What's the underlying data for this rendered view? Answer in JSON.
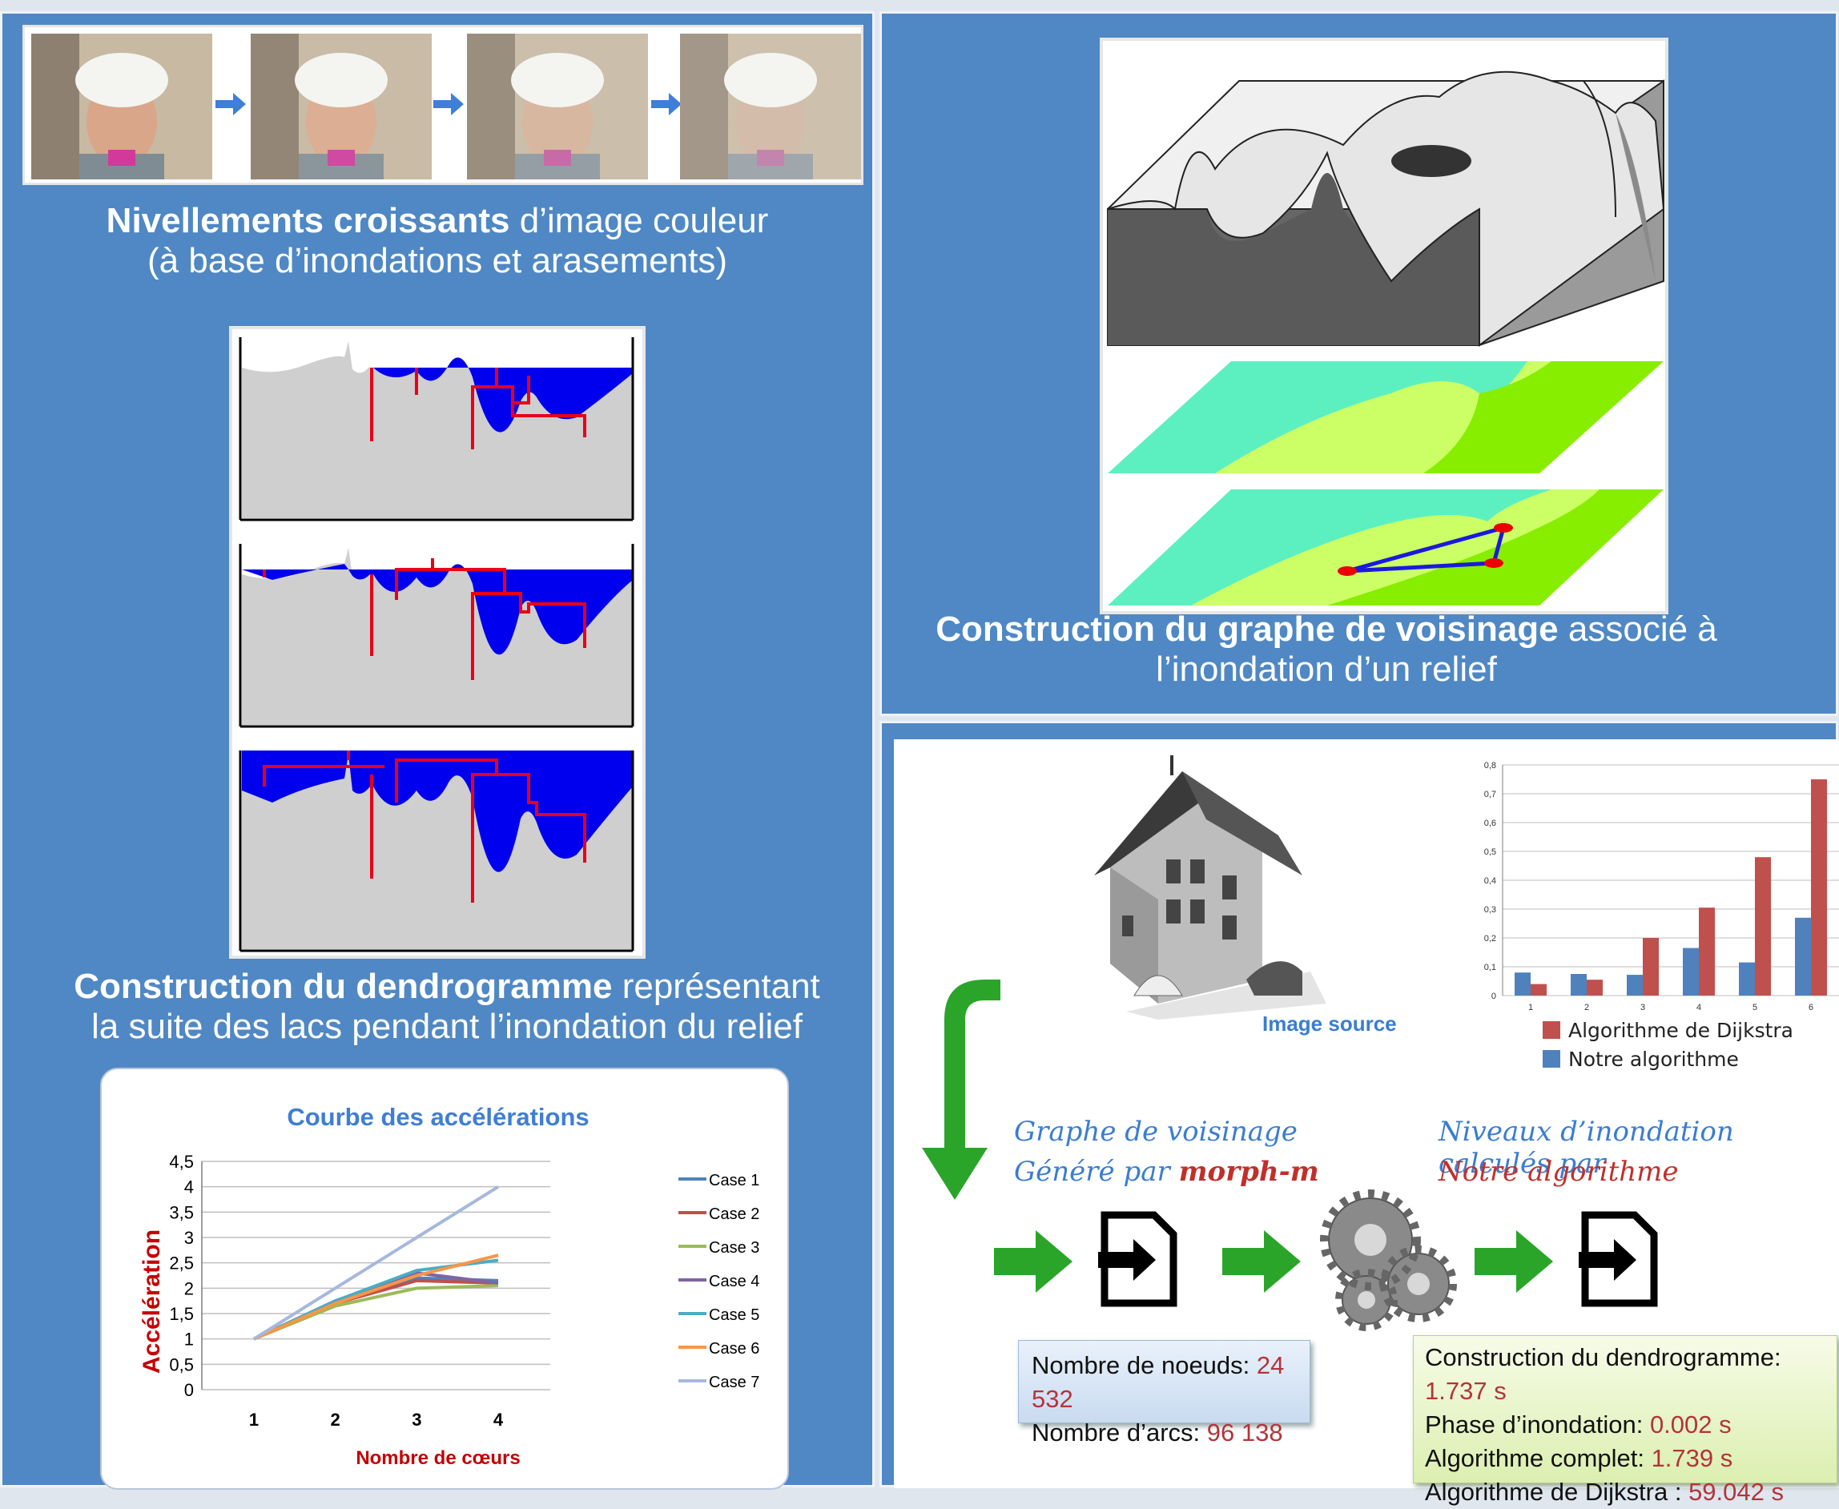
{
  "left": {
    "faces_caption_bold": "Nivellements croissants",
    "faces_caption_rest": " d’image couleur",
    "faces_caption_line2": "(à base d’inondations et arasements)",
    "dendro_caption_bold": "Construction du dendrogramme",
    "dendro_caption_rest": " représentant",
    "dendro_caption_line2": "la suite des lacs pendant l’inondation du relief",
    "accel_chart": {
      "title": "Courbe des accélérations",
      "ylabel": "Accélération",
      "xlabel": "Nombre de cœurs",
      "yticks": [
        "4,5",
        "4",
        "3,5",
        "3",
        "2,5",
        "2",
        "1,5",
        "1",
        "0,5",
        "0"
      ],
      "xticks": [
        "1",
        "2",
        "3",
        "4"
      ]
    }
  },
  "topright": {
    "caption_bold": "Construction du graphe de voisinage",
    "caption_rest": " associé à",
    "caption_line2": "l’inondation d’un relief"
  },
  "bottomright": {
    "image_source_label": "Image source",
    "graphe_line1": "Graphe de voisinage",
    "graphe_line2_pre": "Généré par ",
    "graphe_line2_brand": "morph-m",
    "niveaux_line1": "Niveaux d’inondation calculés par",
    "niveaux_line2": "Notre algorithme",
    "stats_box": {
      "noeuds_label": "Nombre de noeuds: ",
      "noeuds_value": "24 532",
      "arcs_label": "Nombre d’arcs: ",
      "arcs_value": "96 138"
    },
    "timing_box": {
      "dendro_label": "Construction du dendrogramme: ",
      "dendro_value": "1.737 s",
      "inond_label": "Phase d’inondation: ",
      "inond_value": "0.002 s",
      "complet_label": "Algorithme complet: ",
      "complet_value": "1.739 s",
      "dijkstra_label": "Algorithme de Dijkstra : ",
      "dijkstra_value": "59.042 s"
    },
    "bar_chart": {
      "yticks": [
        "0,8",
        "0,7",
        "0,6",
        "0,5",
        "0,4",
        "0,3",
        "0,2",
        "0,1",
        "0"
      ],
      "xticks": [
        "1",
        "2",
        "3",
        "4",
        "5",
        "6"
      ],
      "legend_dijkstra": "Algorithme de Dijkstra",
      "legend_notre": "Notre algorithme"
    }
  },
  "colors": {
    "panel_blue": "#4f88c4",
    "dijkstra_red": "#c0504d",
    "notre_blue": "#4f81bd",
    "value_red": "#b3343a",
    "green_arrow": "#2aa52a"
  },
  "chart_data": [
    {
      "type": "line",
      "title": "Courbe des accélérations",
      "xlabel": "Nombre de cœurs",
      "ylabel": "Accélération",
      "x": [
        1,
        2,
        3,
        4
      ],
      "ylim": [
        0,
        4.5
      ],
      "legend_position": "right",
      "series": [
        {
          "name": "Case 1",
          "color": "#4f81bd",
          "values": [
            1,
            1.72,
            2.2,
            2.15
          ]
        },
        {
          "name": "Case 2",
          "color": "#c0504d",
          "values": [
            1,
            1.7,
            2.15,
            2.1
          ]
        },
        {
          "name": "Case 3",
          "color": "#9bbb59",
          "values": [
            1,
            1.65,
            2.0,
            2.05
          ]
        },
        {
          "name": "Case 4",
          "color": "#8064a2",
          "values": [
            1,
            1.75,
            2.3,
            2.1
          ]
        },
        {
          "name": "Case 5",
          "color": "#4bacc6",
          "values": [
            1,
            1.75,
            2.35,
            2.55
          ]
        },
        {
          "name": "Case 6",
          "color": "#f79646",
          "values": [
            1,
            1.7,
            2.25,
            2.65
          ]
        },
        {
          "name": "Case 7",
          "color": "#a6b8dc",
          "values": [
            1,
            2.0,
            3.0,
            4.0
          ]
        }
      ]
    },
    {
      "type": "bar",
      "categories": [
        "1",
        "2",
        "3",
        "4",
        "5",
        "6"
      ],
      "ylim": [
        0,
        0.8
      ],
      "legend_position": "bottom",
      "series": [
        {
          "name": "Notre algorithme",
          "color": "#4f81bd",
          "values": [
            0.08,
            0.075,
            0.072,
            0.165,
            0.115,
            0.27
          ]
        },
        {
          "name": "Algorithme de Dijkstra",
          "color": "#c0504d",
          "values": [
            0.04,
            0.055,
            0.2,
            0.305,
            0.48,
            0.75
          ]
        }
      ]
    }
  ]
}
